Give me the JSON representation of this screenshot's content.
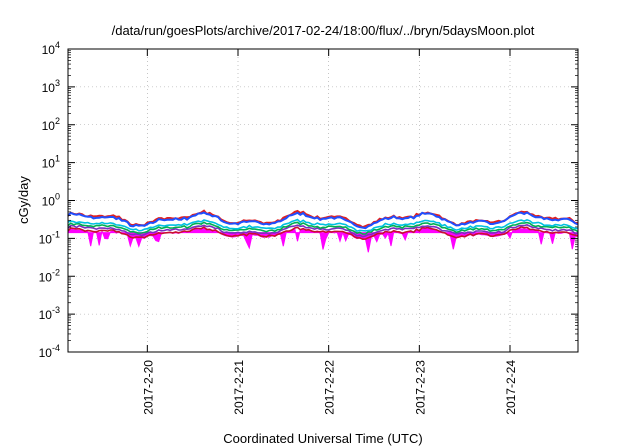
{
  "chart_data": {
    "type": "line",
    "title": "/data/run/goesPlots/archive/2017-02-24/18:00/flux/../bryn/5daysMoon.plot",
    "xlabel": "Coordinated Universal Time (UTC)",
    "ylabel": "cGy/day",
    "yscale": "log",
    "ylim": [
      0.0001,
      10000
    ],
    "y_ticks": [
      {
        "value": 0.0001,
        "base": "10",
        "exp": "-4"
      },
      {
        "value": 0.001,
        "base": "10",
        "exp": "-3"
      },
      {
        "value": 0.01,
        "base": "10",
        "exp": "-2"
      },
      {
        "value": 0.1,
        "base": "10",
        "exp": "-1"
      },
      {
        "value": 1,
        "base": "10",
        "exp": "0"
      },
      {
        "value": 10,
        "base": "10",
        "exp": "1"
      },
      {
        "value": 100,
        "base": "10",
        "exp": "2"
      },
      {
        "value": 1000,
        "base": "10",
        "exp": "3"
      },
      {
        "value": 10000,
        "base": "10",
        "exp": "4"
      }
    ],
    "xlim": [
      "2017-02-19 03:00",
      "2017-02-24 18:00"
    ],
    "x_ticks": [
      {
        "value": "2017-02-20 00:00",
        "label": "2017-2-20"
      },
      {
        "value": "2017-02-21 00:00",
        "label": "2017-2-21"
      },
      {
        "value": "2017-02-22 00:00",
        "label": "2017-2-22"
      },
      {
        "value": "2017-02-23 00:00",
        "label": "2017-2-23"
      },
      {
        "value": "2017-02-24 00:00",
        "label": "2017-2-24"
      }
    ],
    "grid": true,
    "legend": false,
    "series": [
      {
        "color": "#ff00ff",
        "style": "filled-spiky",
        "base_value": 0.135
      },
      {
        "color": "#c8102e",
        "base_value": 0.14
      },
      {
        "color": "#7b2fbf",
        "base_value": 0.165
      },
      {
        "color": "#00b050",
        "base_value": 0.19
      },
      {
        "color": "#00c0e0",
        "base_value": 0.22
      },
      {
        "color": "#e02020",
        "base_value": 0.33
      },
      {
        "color": "#1f4fff",
        "base_value": 0.31
      }
    ]
  }
}
